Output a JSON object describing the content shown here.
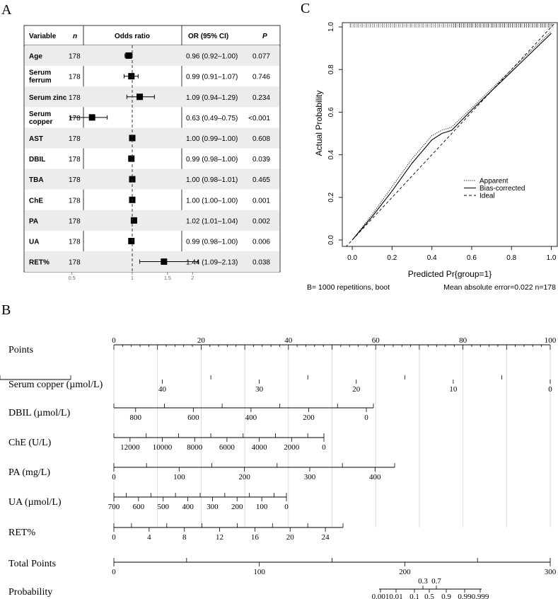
{
  "panel_labels": {
    "a": "A",
    "b": "B",
    "c": "C"
  },
  "forest": {
    "headers": {
      "variable": "Variable",
      "n": "n",
      "odds_ratio": "Odds ratio",
      "or_ci": "OR (95% CI)",
      "p": "P"
    },
    "rows": [
      {
        "label": [
          "Age"
        ],
        "n": "178",
        "or": 0.96,
        "lo": 0.92,
        "hi": 1.0,
        "ci_text": "0.96 (0.92–1.00)",
        "p": "0.077"
      },
      {
        "label": [
          "Serum",
          "ferrum"
        ],
        "n": "178",
        "or": 0.99,
        "lo": 0.91,
        "hi": 1.07,
        "ci_text": "0.99 (0.91–1.07)",
        "p": "0.746"
      },
      {
        "label": [
          "Serum zinc"
        ],
        "n": "178",
        "or": 1.09,
        "lo": 0.94,
        "hi": 1.29,
        "ci_text": "1.09 (0.94–1.29)",
        "p": "0.234"
      },
      {
        "label": [
          "Serum",
          "copper"
        ],
        "n": "178",
        "or": 0.63,
        "lo": 0.49,
        "hi": 0.75,
        "ci_text": "0.63 (0.49–0.75)",
        "p": "<0.001"
      },
      {
        "label": [
          "AST"
        ],
        "n": "178",
        "or": 1.0,
        "lo": 0.99,
        "hi": 1.0,
        "ci_text": "1.00 (0.99–1.00)",
        "p": "0.608"
      },
      {
        "label": [
          "DBIL"
        ],
        "n": "178",
        "or": 0.99,
        "lo": 0.98,
        "hi": 1.0,
        "ci_text": "0.99 (0.98–1.00)",
        "p": "0.039"
      },
      {
        "label": [
          "TBA"
        ],
        "n": "178",
        "or": 1.0,
        "lo": 0.98,
        "hi": 1.01,
        "ci_text": "1.00 (0.98–1.01)",
        "p": "0.465"
      },
      {
        "label": [
          "ChE"
        ],
        "n": "178",
        "or": 1.0,
        "lo": 1.0,
        "hi": 1.0,
        "ci_text": "1.00 (1.00–1.00)",
        "p": "0.001"
      },
      {
        "label": [
          "PA"
        ],
        "n": "178",
        "or": 1.02,
        "lo": 1.01,
        "hi": 1.04,
        "ci_text": "1.02 (1.01–1.04)",
        "p": "0.002"
      },
      {
        "label": [
          "UA"
        ],
        "n": "178",
        "or": 0.99,
        "lo": 0.98,
        "hi": 1.0,
        "ci_text": "0.99 (0.98–1.00)",
        "p": "0.006"
      },
      {
        "label": [
          "RET%"
        ],
        "n": "178",
        "or": 1.44,
        "lo": 1.09,
        "hi": 2.13,
        "ci_text": "1.44 (1.09–2.13)",
        "p": "0.038"
      }
    ],
    "axis_ticks": [
      {
        "value": 0.5,
        "label": "0.5"
      },
      {
        "value": 1,
        "label": "1"
      },
      {
        "value": 1.5,
        "label": "1.5"
      },
      {
        "value": 2,
        "label": "2"
      }
    ]
  },
  "chart_data": [
    {
      "type": "line",
      "xlabel": "Predicted Pr{group=1}",
      "ylabel": "Actual Probability",
      "xlim": [
        -0.05,
        1.03
      ],
      "ylim": [
        -0.03,
        1.02
      ],
      "x_ticks": [
        "0.0",
        "0.2",
        "0.4",
        "0.6",
        "0.8",
        "1.0"
      ],
      "y_ticks": [
        "0.0",
        "0.2",
        "0.4",
        "0.6",
        "0.8",
        "1.0"
      ],
      "legend": {
        "position": "lower-right",
        "entries": [
          "Apparent",
          "Bias-corrected",
          "Ideal"
        ]
      },
      "series": [
        {
          "name": "Apparent",
          "style": "dotted",
          "x": [
            0.0,
            0.1,
            0.2,
            0.3,
            0.4,
            0.45,
            0.5,
            0.6,
            0.7,
            0.8,
            0.9,
            1.0
          ],
          "y": [
            0.0,
            0.12,
            0.25,
            0.38,
            0.49,
            0.515,
            0.53,
            0.62,
            0.71,
            0.8,
            0.89,
            0.98
          ]
        },
        {
          "name": "Bias-corrected",
          "style": "solid",
          "x": [
            0.0,
            0.1,
            0.2,
            0.3,
            0.4,
            0.45,
            0.5,
            0.6,
            0.7,
            0.8,
            0.9,
            1.0
          ],
          "y": [
            0.0,
            0.11,
            0.23,
            0.36,
            0.47,
            0.5,
            0.515,
            0.61,
            0.7,
            0.79,
            0.88,
            0.97
          ]
        },
        {
          "name": "Ideal",
          "style": "dashed",
          "x": [
            -0.05,
            1.03
          ],
          "y": [
            -0.05,
            1.03
          ]
        }
      ],
      "footer_left": "B= 1000 repetitions, boot",
      "footer_right": "Mean absolute error=0.022 n=178"
    }
  ],
  "nomogram": {
    "rows": [
      {
        "label": "Points",
        "ticks": [
          {
            "v": 0,
            "t": "0"
          },
          {
            "v": 20,
            "t": "20"
          },
          {
            "v": 40,
            "t": "40"
          },
          {
            "v": 60,
            "t": "60"
          },
          {
            "v": 80,
            "t": "80"
          },
          {
            "v": 100,
            "t": "100"
          }
        ]
      },
      {
        "label": "Serum copper (µmol/L)",
        "ticks": [
          {
            "v": 40,
            "t": "40"
          },
          {
            "v": 30,
            "t": "30"
          },
          {
            "v": 20,
            "t": "20"
          },
          {
            "v": 10,
            "t": "10"
          },
          {
            "v": 0,
            "t": "0"
          }
        ]
      },
      {
        "label": "DBIL (µmol/L)",
        "ticks": [
          {
            "v": 800,
            "t": "800"
          },
          {
            "v": 600,
            "t": "600"
          },
          {
            "v": 400,
            "t": "400"
          },
          {
            "v": 200,
            "t": "200"
          },
          {
            "v": 0,
            "t": "0"
          }
        ]
      },
      {
        "label": "ChE (U/L)",
        "ticks": [
          {
            "v": 12000,
            "t": "12000"
          },
          {
            "v": 10000,
            "t": "10000"
          },
          {
            "v": 8000,
            "t": "8000"
          },
          {
            "v": 6000,
            "t": "6000"
          },
          {
            "v": 4000,
            "t": "4000"
          },
          {
            "v": 2000,
            "t": "2000"
          },
          {
            "v": 0,
            "t": "0"
          }
        ]
      },
      {
        "label": "PA (mg/L)",
        "ticks": [
          {
            "v": 0,
            "t": "0"
          },
          {
            "v": 100,
            "t": "100"
          },
          {
            "v": 200,
            "t": "200"
          },
          {
            "v": 300,
            "t": "300"
          },
          {
            "v": 400,
            "t": "400"
          }
        ]
      },
      {
        "label": "UA (µmol/L)",
        "ticks": [
          {
            "v": 700,
            "t": "700"
          },
          {
            "v": 600,
            "t": "600"
          },
          {
            "v": 500,
            "t": "500"
          },
          {
            "v": 400,
            "t": "400"
          },
          {
            "v": 300,
            "t": "300"
          },
          {
            "v": 200,
            "t": "200"
          },
          {
            "v": 100,
            "t": "100"
          },
          {
            "v": 0,
            "t": "0"
          }
        ]
      },
      {
        "label": "RET%",
        "ticks": [
          {
            "v": 0,
            "t": "0"
          },
          {
            "v": 4,
            "t": "4"
          },
          {
            "v": 8,
            "t": "8"
          },
          {
            "v": 12,
            "t": "12"
          },
          {
            "v": 16,
            "t": "16"
          },
          {
            "v": 20,
            "t": "20"
          },
          {
            "v": 24,
            "t": "24"
          }
        ]
      },
      {
        "label": "Total Points",
        "ticks": [
          {
            "v": 0,
            "t": "0"
          },
          {
            "v": 100,
            "t": "100"
          },
          {
            "v": 200,
            "t": "200"
          },
          {
            "v": 300,
            "t": "300"
          }
        ]
      },
      {
        "label": "Probability",
        "ticks": [
          {
            "t": "0.001"
          },
          {
            "t": "0.01"
          },
          {
            "t": "0.1"
          },
          {
            "t": "0.3"
          },
          {
            "t": "0.5"
          },
          {
            "t": "0.7"
          },
          {
            "t": "0.9"
          },
          {
            "t": "0.99"
          },
          {
            "t": "0.999"
          }
        ]
      }
    ]
  }
}
